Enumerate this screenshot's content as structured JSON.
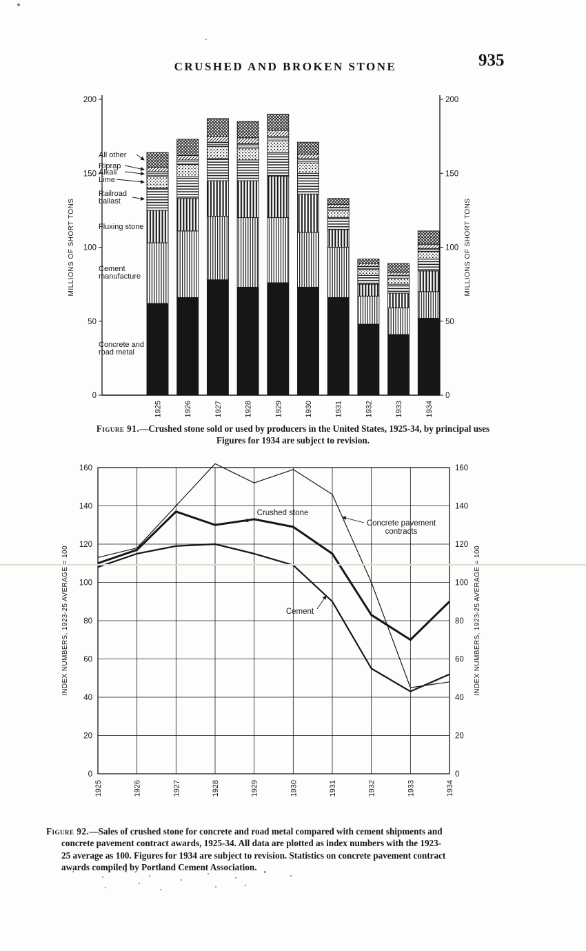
{
  "page": {
    "header": {
      "title": "CRUSHED AND BROKEN STONE",
      "page_number": "935"
    }
  },
  "figure91": {
    "label": "Figure 91.",
    "caption_main": "—Crushed stone sold or used by producers in the United States, 1925-34, by principal uses",
    "caption_note": "Figures for 1934 are subject to revision."
  },
  "figure92": {
    "label": "Figure 92.",
    "caption_line1": "—Sales of crushed stone for concrete and road metal compared with cement shipments and",
    "caption_line2": "concrete pavement contract awards, 1925-34. All data are plotted as index numbers with the 1923-",
    "caption_line3": "25 average as 100. Figures for 1934 are subject to revision. Statistics on concrete pavement contract",
    "caption_line4": "awards compiled by Portland Cement Association."
  },
  "chart_data": [
    {
      "type": "bar",
      "stacked": true,
      "categories": [
        "1925",
        "1926",
        "1927",
        "1928",
        "1929",
        "1930",
        "1931",
        "1932",
        "1933",
        "1934"
      ],
      "series": [
        {
          "name": "Concrete and road metal",
          "pattern": "solid",
          "values": [
            62,
            66,
            78,
            73,
            76,
            73,
            66,
            48,
            41,
            52
          ]
        },
        {
          "name": "Cement manufacture",
          "pattern": "vlines",
          "values": [
            41,
            45,
            43,
            47,
            44,
            37,
            34,
            19,
            18,
            18
          ]
        },
        {
          "name": "Fluxing stone",
          "pattern": "vlines-bold",
          "values": [
            22,
            22,
            24,
            25,
            28,
            26,
            12,
            8,
            10,
            14
          ]
        },
        {
          "name": "Railroad ballast",
          "pattern": "hlines",
          "values": [
            15,
            15,
            15,
            14,
            16,
            14,
            8,
            6,
            6,
            8
          ]
        },
        {
          "name": "Lime",
          "pattern": "dots",
          "values": [
            8,
            8,
            8,
            8,
            8,
            7,
            5,
            4,
            4,
            5
          ]
        },
        {
          "name": "Alkali",
          "pattern": "hlines-fine",
          "values": [
            3,
            3,
            3,
            3,
            3,
            3,
            2,
            2,
            2,
            2
          ]
        },
        {
          "name": "Riprap",
          "pattern": "diagonal",
          "values": [
            3,
            3,
            4,
            4,
            4,
            3,
            2,
            2,
            2,
            3
          ]
        },
        {
          "name": "All other",
          "pattern": "crosshatch",
          "values": [
            10,
            11,
            12,
            11,
            11,
            8,
            4,
            3,
            6,
            9
          ]
        }
      ],
      "ylabel": "MILLIONS OF SHORT TONS",
      "ylim": [
        0,
        200
      ],
      "yticks": [
        0,
        50,
        100,
        150,
        200
      ],
      "grid": false
    },
    {
      "type": "line",
      "categories": [
        "1925",
        "1926",
        "1927",
        "1928",
        "1929",
        "1930",
        "1931",
        "1932",
        "1933",
        "1934"
      ],
      "series": [
        {
          "name": "Crushed stone",
          "values": [
            110,
            117,
            137,
            130,
            133,
            129,
            115,
            83,
            70,
            90
          ]
        },
        {
          "name": "Concrete pavement contracts",
          "values": [
            113,
            118,
            140,
            162,
            152,
            159,
            146,
            100,
            45,
            48
          ]
        },
        {
          "name": "Cement",
          "values": [
            108,
            115,
            119,
            120,
            115,
            109,
            90,
            55,
            43,
            52
          ]
        }
      ],
      "ylabel": "INDEX NUMBERS, 1923-25 AVERAGE = 100",
      "ylim": [
        0,
        160
      ],
      "yticks": [
        0,
        20,
        40,
        60,
        80,
        100,
        120,
        140,
        160
      ],
      "grid": true,
      "legend_position": "inline-labels"
    }
  ]
}
